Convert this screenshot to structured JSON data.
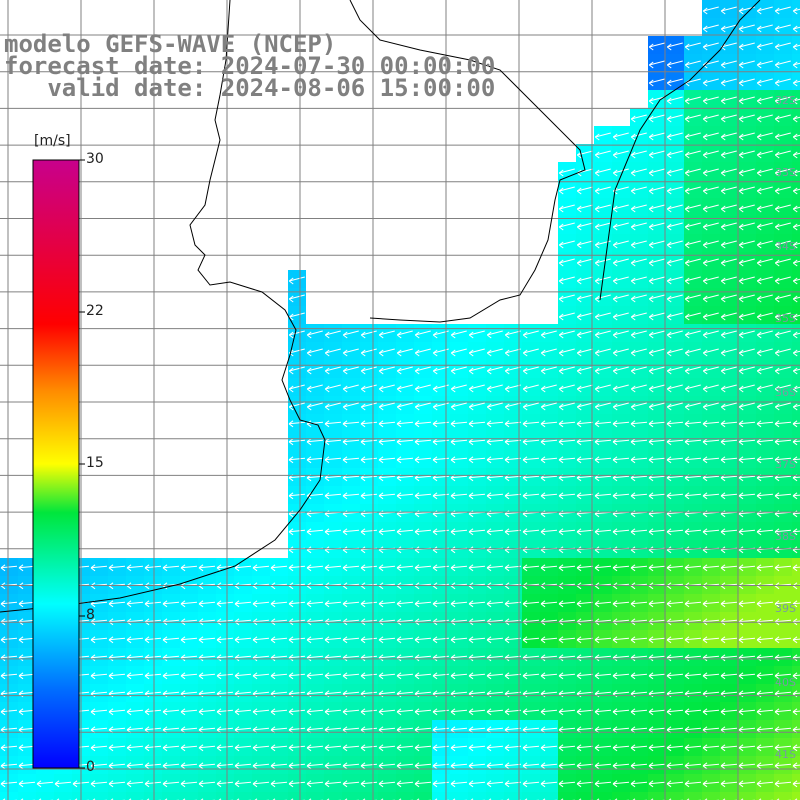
{
  "header": {
    "model": "modelo GEFS-WAVE (NCEP)",
    "forecast": "forecast date: 2024-07-30 00:00:00",
    "valid": "   valid date: 2024-08-06 15:00:00"
  },
  "colorbar": {
    "unit": "[m/s]",
    "ticks": [
      {
        "value": 30,
        "label": "30"
      },
      {
        "value": 22,
        "label": "22"
      },
      {
        "value": 15,
        "label": "15"
      },
      {
        "value": 8,
        "label": "8"
      },
      {
        "value": 0,
        "label": "0"
      }
    ],
    "range": [
      0,
      30
    ]
  },
  "lat_labels": [
    "32S",
    "33S",
    "34S",
    "35S",
    "36S",
    "37S",
    "38S",
    "39S",
    "40S",
    "41S"
  ],
  "colors": {
    "land": "#ffffff",
    "coast": "#000000",
    "grid": "#808080",
    "arrow": "#ffffff",
    "title": "#808080"
  }
}
